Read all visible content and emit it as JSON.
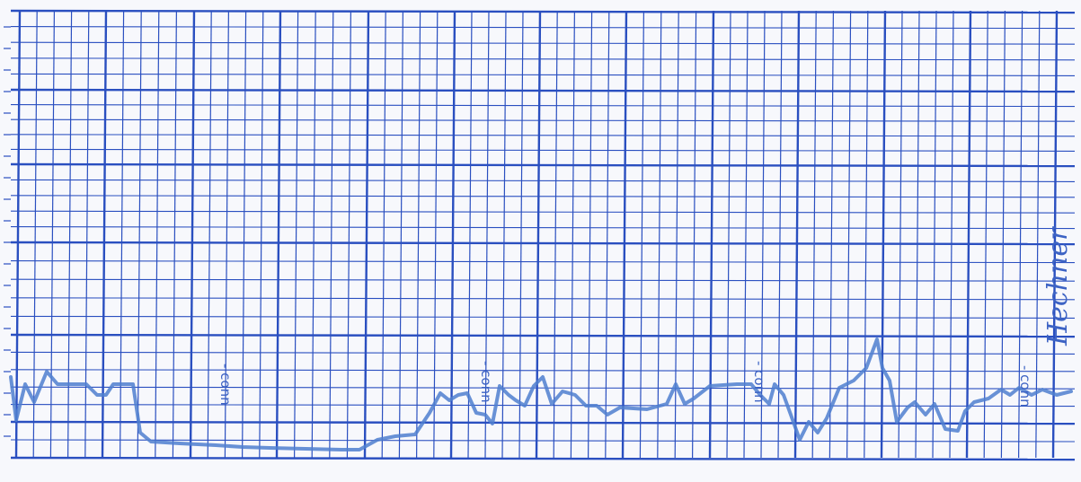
{
  "image": {
    "description_free_content": true,
    "paper_color": "#f7f8fc",
    "grid_color": "#2a4fc0",
    "trace_color": "#4f7fcf",
    "ink_color": "#3d63c4"
  },
  "annotations": [
    {
      "text": "- conn"
    },
    {
      "text": "- conn"
    },
    {
      "text": "- conn"
    },
    {
      "text": "- conn"
    }
  ],
  "signature": {
    "text": "Hechner"
  }
}
